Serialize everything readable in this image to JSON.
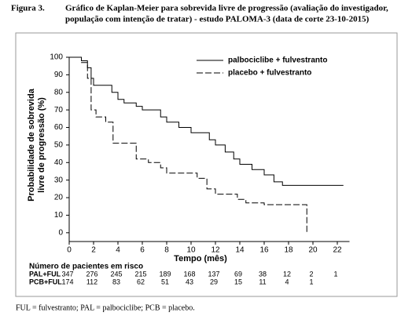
{
  "chart_data": {
    "type": "line",
    "figure_label": "Figura 3.",
    "title": [
      "Gráfico de Kaplan-Meier para sobrevida livre de progressão (avaliação do investigador,",
      "população com intenção de tratar) - estudo PALOMA-3 (data de corte 23-10-2015)"
    ],
    "y_label": [
      "Probabilidade de sobrevida",
      "livre de progressão (%)"
    ],
    "x_label": "Tempo (mês)",
    "xlim": [
      0,
      23
    ],
    "ylim": [
      -5,
      100
    ],
    "xticks": [
      0,
      2,
      4,
      6,
      8,
      10,
      12,
      14,
      16,
      18,
      20,
      22
    ],
    "yticks": [
      0,
      10,
      20,
      30,
      40,
      50,
      60,
      70,
      80,
      90,
      100
    ],
    "series": [
      {
        "name": "palbociclibe + fulvestranto",
        "color": "#000000",
        "dash": false,
        "x": [
          0,
          1,
          1,
          1.5,
          1.5,
          1.8,
          1.8,
          2,
          2,
          3.5,
          3.5,
          4,
          4,
          4.5,
          4.5,
          5.5,
          5.5,
          6,
          6,
          7.5,
          7.5,
          8,
          8,
          9,
          9,
          10,
          10,
          11.5,
          11.5,
          12,
          12,
          12.8,
          12.8,
          13.5,
          13.5,
          14,
          14,
          15,
          15,
          16,
          16,
          16.8,
          16.8,
          17.5,
          17.5,
          22.5
        ],
        "values": [
          100,
          100,
          98,
          98,
          94,
          94,
          88,
          88,
          84,
          84,
          80,
          80,
          76,
          76,
          74,
          74,
          72,
          72,
          70,
          70,
          66,
          66,
          63,
          63,
          60,
          60,
          57,
          57,
          53,
          53,
          50,
          50,
          46,
          46,
          42,
          42,
          39,
          39,
          36,
          36,
          33,
          33,
          29,
          29,
          27,
          27
        ]
      },
      {
        "name": "placebo + fulvestranto",
        "color": "#000000",
        "dash": true,
        "x": [
          0,
          1,
          1,
          1.5,
          1.5,
          1.8,
          1.8,
          2.2,
          2.2,
          3,
          3,
          3.6,
          3.6,
          5.5,
          5.5,
          6.5,
          6.5,
          7.5,
          7.5,
          8,
          8,
          10.5,
          10.5,
          11.3,
          11.3,
          12,
          12,
          13.8,
          13.8,
          14.5,
          14.5,
          16,
          16,
          19.5,
          19.5
        ],
        "values": [
          100,
          100,
          97,
          97,
          88,
          88,
          70,
          70,
          66,
          66,
          63,
          63,
          51,
          51,
          42,
          42,
          40,
          40,
          37,
          37,
          34,
          34,
          31,
          31,
          25,
          25,
          22,
          22,
          19,
          19,
          17,
          17,
          16,
          16,
          0
        ]
      }
    ],
    "risk_table": {
      "title": "Número de pacientes em risco",
      "rows": [
        {
          "label": "PAL+FUL",
          "counts": [
            347,
            276,
            245,
            215,
            189,
            168,
            137,
            69,
            38,
            12,
            2,
            1
          ]
        },
        {
          "label": "PCB+FUL",
          "counts": [
            174,
            112,
            83,
            62,
            51,
            43,
            29,
            15,
            11,
            4,
            1,
            null
          ]
        }
      ]
    },
    "footnote": "FUL = fulvestranto; PAL = palbociclibe; PCB = placebo."
  }
}
